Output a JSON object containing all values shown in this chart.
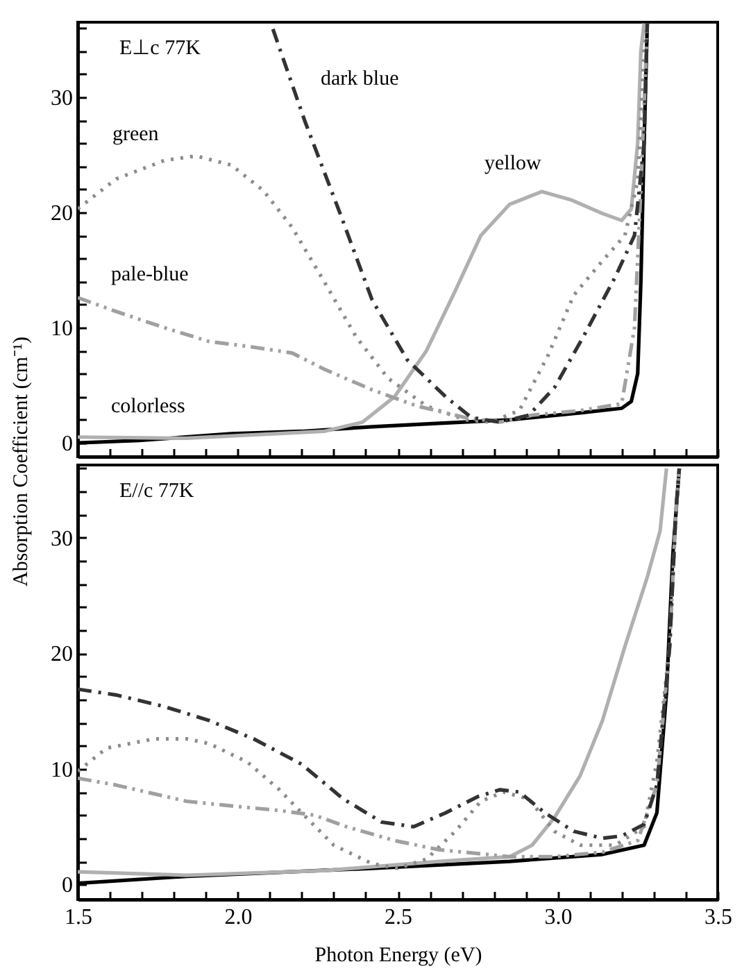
{
  "chart_data": [
    {
      "type": "line",
      "title": "E⊥c 77K",
      "ylabel": "Absorption Coefficient (cm⁻¹)",
      "xlim": [
        1.5,
        3.5
      ],
      "ylim": [
        -1.2,
        36.5
      ],
      "tick_labels": "y",
      "xticks": [
        {
          "value": 1.5,
          "label": null
        },
        {
          "value": 1.6,
          "label": null
        },
        {
          "value": 1.7,
          "label": null
        },
        {
          "value": 1.8,
          "label": null
        },
        {
          "value": 1.9,
          "label": null
        },
        {
          "value": 2,
          "label": null
        },
        {
          "value": 2.1,
          "label": null
        },
        {
          "value": 2.2,
          "label": null
        },
        {
          "value": 2.3,
          "label": null
        },
        {
          "value": 2.4,
          "label": null
        },
        {
          "value": 2.5,
          "label": null
        },
        {
          "value": 2.6,
          "label": null
        },
        {
          "value": 2.7,
          "label": null
        },
        {
          "value": 2.8,
          "label": null
        },
        {
          "value": 2.9,
          "label": null
        },
        {
          "value": 3,
          "label": null
        },
        {
          "value": 3.1,
          "label": null
        },
        {
          "value": 3.2,
          "label": null
        },
        {
          "value": 3.3,
          "label": null
        },
        {
          "value": 3.4,
          "label": null
        },
        {
          "value": 3.5,
          "label": null
        }
      ],
      "yticks": [
        0,
        {
          "value": 2,
          "label": null
        },
        {
          "value": 4,
          "label": null
        },
        {
          "value": 6,
          "label": null
        },
        {
          "value": 8,
          "label": null
        },
        10,
        {
          "value": 12,
          "label": null
        },
        {
          "value": 14,
          "label": null
        },
        {
          "value": 16,
          "label": null
        },
        {
          "value": 18,
          "label": null
        },
        20,
        {
          "value": 22,
          "label": null
        },
        {
          "value": 24,
          "label": null
        },
        {
          "value": 26,
          "label": null
        },
        {
          "value": 28,
          "label": null
        },
        30,
        {
          "value": 32,
          "label": null
        },
        {
          "value": 34,
          "label": null
        },
        {
          "value": 36,
          "label": null
        }
      ],
      "series": [
        {
          "name": "colorless",
          "color": "#000000",
          "line_style": "solid",
          "x": [
            1.5,
            1.69,
            1.98,
            2.2,
            2.42,
            2.63,
            2.85,
            3.07,
            3.2,
            3.23,
            3.25,
            3.26,
            3.27,
            3.28
          ],
          "values": [
            0,
            0.2,
            0.8,
            1.0,
            1.4,
            1.7,
            2.0,
            2.6,
            3.0,
            3.6,
            6,
            14,
            26,
            36.4
          ]
        },
        {
          "name": "yellow",
          "color": "#b0b0b0",
          "line_style": "solid",
          "x": [
            1.5,
            1.84,
            2.27,
            2.39,
            2.49,
            2.59,
            2.68,
            2.76,
            2.85,
            2.95,
            3.04,
            3.14,
            3.2,
            3.23,
            3.25,
            3.26,
            3.27
          ],
          "values": [
            0.5,
            0.4,
            1.0,
            1.8,
            4.0,
            8,
            13.2,
            18,
            20.7,
            21.8,
            21.1,
            19.9,
            19.3,
            20.3,
            26,
            34,
            36.4
          ]
        },
        {
          "name": "green",
          "color": "#8c8c8c",
          "line_style": "dotted",
          "x": [
            1.5,
            1.62,
            1.77,
            1.87,
            1.98,
            2.08,
            2.17,
            2.27,
            2.37,
            2.47,
            2.59,
            2.71,
            2.79,
            2.88,
            2.97,
            3.05,
            3.14,
            3.21,
            3.25,
            3.27,
            3.28
          ],
          "values": [
            20.3,
            22.9,
            24.5,
            24.9,
            24.1,
            21.9,
            18.7,
            14.0,
            9.2,
            5.6,
            3.2,
            2.0,
            1.8,
            2.8,
            7.6,
            12.8,
            15.8,
            18,
            22.7,
            34,
            36.4
          ]
        },
        {
          "name": "pale-blue",
          "color": "#a0a0a0",
          "line_style": "dashdotdot",
          "x": [
            1.5,
            1.62,
            1.77,
            1.91,
            2.05,
            2.17,
            2.27,
            2.42,
            2.56,
            2.71,
            2.82,
            2.92,
            3.07,
            3.2,
            3.24,
            3.26,
            3.28
          ],
          "values": [
            12.6,
            11.4,
            10.0,
            8.8,
            8.3,
            7.8,
            6.4,
            4.6,
            3.2,
            2.2,
            1.8,
            2.4,
            2.8,
            3.4,
            10,
            22,
            36.4
          ]
        },
        {
          "name": "dark blue",
          "color": "#333333",
          "line_style": "dashdot",
          "x": [
            2.11,
            2.21,
            2.32,
            2.42,
            2.53,
            2.65,
            2.73,
            2.82,
            2.91,
            2.99,
            3.08,
            3.18,
            3.24,
            3.27,
            3.28
          ],
          "values": [
            35.9,
            27.9,
            19.9,
            12.4,
            7.2,
            4.0,
            2.2,
            1.8,
            2.4,
            4.8,
            9.2,
            14.4,
            18,
            26,
            36.4
          ]
        }
      ]
    },
    {
      "type": "line",
      "title": "E//c 77K",
      "xlabel": "Photon Energy (eV)",
      "xlim": [
        1.5,
        3.5
      ],
      "ylim": [
        -1.3,
        36.3
      ],
      "xticks": [
        1.5,
        {
          "value": 1.6,
          "label": null
        },
        {
          "value": 1.7,
          "label": null
        },
        {
          "value": 1.8,
          "label": null
        },
        {
          "value": 1.9,
          "label": null
        },
        {
          "value": 2,
          "label": "2.0"
        },
        {
          "value": 2.1,
          "label": null
        },
        {
          "value": 2.2,
          "label": null
        },
        {
          "value": 2.3,
          "label": null
        },
        {
          "value": 2.4,
          "label": null
        },
        2.5,
        {
          "value": 2.6,
          "label": null
        },
        {
          "value": 2.7,
          "label": null
        },
        {
          "value": 2.8,
          "label": null
        },
        {
          "value": 2.9,
          "label": null
        },
        {
          "value": 3,
          "label": "3.0"
        },
        {
          "value": 3.1,
          "label": null
        },
        {
          "value": 3.2,
          "label": null
        },
        {
          "value": 3.3,
          "label": null
        },
        {
          "value": 3.4,
          "label": null
        },
        3.5
      ],
      "yticks": [
        0,
        {
          "value": 2,
          "label": null
        },
        {
          "value": 4,
          "label": null
        },
        {
          "value": 6,
          "label": null
        },
        {
          "value": 8,
          "label": null
        },
        10,
        {
          "value": 12,
          "label": null
        },
        {
          "value": 14,
          "label": null
        },
        {
          "value": 16,
          "label": null
        },
        {
          "value": 18,
          "label": null
        },
        20,
        {
          "value": 22,
          "label": null
        },
        {
          "value": 24,
          "label": null
        },
        {
          "value": 26,
          "label": null
        },
        {
          "value": 28,
          "label": null
        },
        30,
        {
          "value": 32,
          "label": null
        },
        {
          "value": 34,
          "label": null
        },
        {
          "value": 36,
          "label": null
        }
      ],
      "series": [
        {
          "color": "#000000",
          "line_style": "solid",
          "x": [
            1.5,
            1.84,
            2.42,
            2.85,
            3.14,
            3.27,
            3.31,
            3.34,
            3.36,
            3.38
          ],
          "values": [
            0.1,
            0.7,
            1.4,
            2.0,
            2.6,
            3.4,
            6.2,
            16.6,
            28.6,
            36
          ]
        },
        {
          "color": "#b0b0b0",
          "line_style": "solid",
          "x": [
            1.5,
            1.84,
            2.27,
            2.63,
            2.85,
            2.92,
            2.99,
            3.07,
            3.14,
            3.21,
            3.28,
            3.32,
            3.34
          ],
          "values": [
            1.1,
            0.8,
            1.2,
            2.0,
            2.4,
            3.4,
            5.8,
            9.4,
            14.2,
            20.6,
            26.6,
            30.6,
            36
          ]
        },
        {
          "color": "#8c8c8c",
          "line_style": "dotted",
          "x": [
            1.5,
            1.59,
            1.74,
            1.84,
            1.91,
            2.03,
            2.13,
            2.2,
            2.3,
            2.42,
            2.5,
            2.59,
            2.68,
            2.76,
            2.83,
            2.91,
            2.99,
            3.07,
            3.18,
            3.27,
            3.31,
            3.35,
            3.37,
            3.38
          ],
          "values": [
            9.8,
            11.8,
            12.6,
            12.6,
            12.2,
            10.6,
            8.2,
            6.2,
            3.4,
            1.8,
            1.4,
            2.2,
            4.6,
            7.2,
            8.0,
            7.4,
            4.6,
            3.4,
            3.4,
            5.0,
            10.6,
            20.6,
            32.6,
            36
          ]
        },
        {
          "color": "#a0a0a0",
          "line_style": "dashdotdot",
          "x": [
            1.5,
            1.62,
            1.84,
            1.98,
            2.13,
            2.24,
            2.34,
            2.49,
            2.63,
            2.78,
            2.85,
            2.99,
            3.14,
            3.25,
            3.31,
            3.35,
            3.37,
            3.38
          ],
          "values": [
            9.2,
            8.6,
            7.2,
            6.8,
            6.4,
            6.0,
            5.0,
            3.8,
            3.0,
            2.6,
            2.4,
            2.4,
            2.8,
            3.8,
            8.6,
            20.6,
            32.6,
            36
          ]
        },
        {
          "color": "#333333",
          "line_style": "dashdot",
          "x": [
            1.5,
            1.62,
            1.77,
            1.91,
            2.05,
            2.2,
            2.33,
            2.45,
            2.55,
            2.65,
            2.75,
            2.82,
            2.88,
            2.96,
            3.05,
            3.14,
            3.2,
            3.27,
            3.31,
            3.35,
            3.37,
            3.38
          ],
          "values": [
            16.9,
            16.4,
            15.4,
            14.2,
            12.6,
            10.4,
            7.4,
            5.4,
            5.0,
            6.2,
            7.6,
            8.2,
            8.0,
            6.2,
            4.6,
            4.0,
            4.2,
            5.2,
            8.6,
            20.6,
            32.6,
            36
          ]
        }
      ]
    }
  ]
}
